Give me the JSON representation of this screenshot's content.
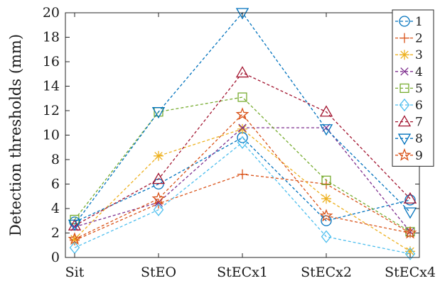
{
  "chart_data": {
    "type": "line",
    "title": "",
    "xlabel": "",
    "ylabel": "Detection thresholds (mm)",
    "categories": [
      "Sit",
      "StEO",
      "StECx1",
      "StECx2",
      "StECx4"
    ],
    "ylim": [
      0,
      20
    ],
    "yticks": [
      0,
      2,
      4,
      6,
      8,
      10,
      12,
      14,
      16,
      18,
      20
    ],
    "grid": false,
    "legend_position": "top-right",
    "series": [
      {
        "name": "1",
        "color": "#0072BD",
        "marker": "circle",
        "values": [
          2.9,
          6.0,
          9.8,
          3.0,
          4.7
        ]
      },
      {
        "name": "2",
        "color": "#D95319",
        "marker": "plus",
        "values": [
          1.4,
          4.4,
          6.8,
          6.0,
          2.0
        ]
      },
      {
        "name": "3",
        "color": "#EDB120",
        "marker": "asterisk",
        "values": [
          1.5,
          8.3,
          10.5,
          4.8,
          0.5
        ]
      },
      {
        "name": "4",
        "color": "#7E2F8E",
        "marker": "x",
        "values": [
          2.5,
          4.5,
          10.6,
          10.6,
          2.1
        ]
      },
      {
        "name": "5",
        "color": "#77AC30",
        "marker": "square",
        "values": [
          3.1,
          11.9,
          13.1,
          6.3,
          2.1
        ]
      },
      {
        "name": "6",
        "color": "#4DBEEE",
        "marker": "diamond",
        "values": [
          0.8,
          3.9,
          9.4,
          1.7,
          0.3
        ]
      },
      {
        "name": "7",
        "color": "#A2142F",
        "marker": "triangle-up",
        "values": [
          2.6,
          6.4,
          15.1,
          11.9,
          4.8
        ]
      },
      {
        "name": "8",
        "color": "#0072BD",
        "marker": "triangle-down",
        "values": [
          2.7,
          11.9,
          20.0,
          10.5,
          3.7
        ]
      },
      {
        "name": "9",
        "color": "#D95319",
        "marker": "pentagram",
        "values": [
          1.5,
          4.8,
          11.7,
          3.4,
          2.0
        ]
      }
    ]
  }
}
